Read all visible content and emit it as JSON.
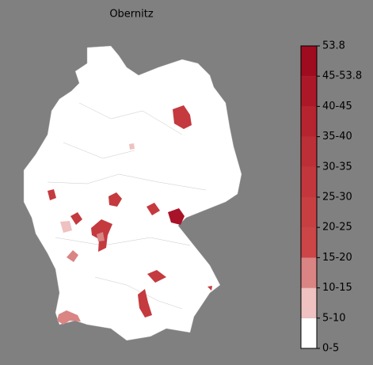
{
  "title": "Obernitz",
  "colorbar": {
    "labels": [
      "0-5",
      "5-10",
      "10-15",
      "15-20",
      "20-25",
      "25-30",
      "30-35",
      "35-40",
      "40-45",
      "45-53.8",
      "53.8"
    ],
    "colors": [
      "#ffffff",
      "#efc1c1",
      "#da8484",
      "#cc4547",
      "#c83f42",
      "#c3373c",
      "#bd2f37",
      "#b6242f",
      "#ac1827",
      "#9f0c1f"
    ]
  }
}
